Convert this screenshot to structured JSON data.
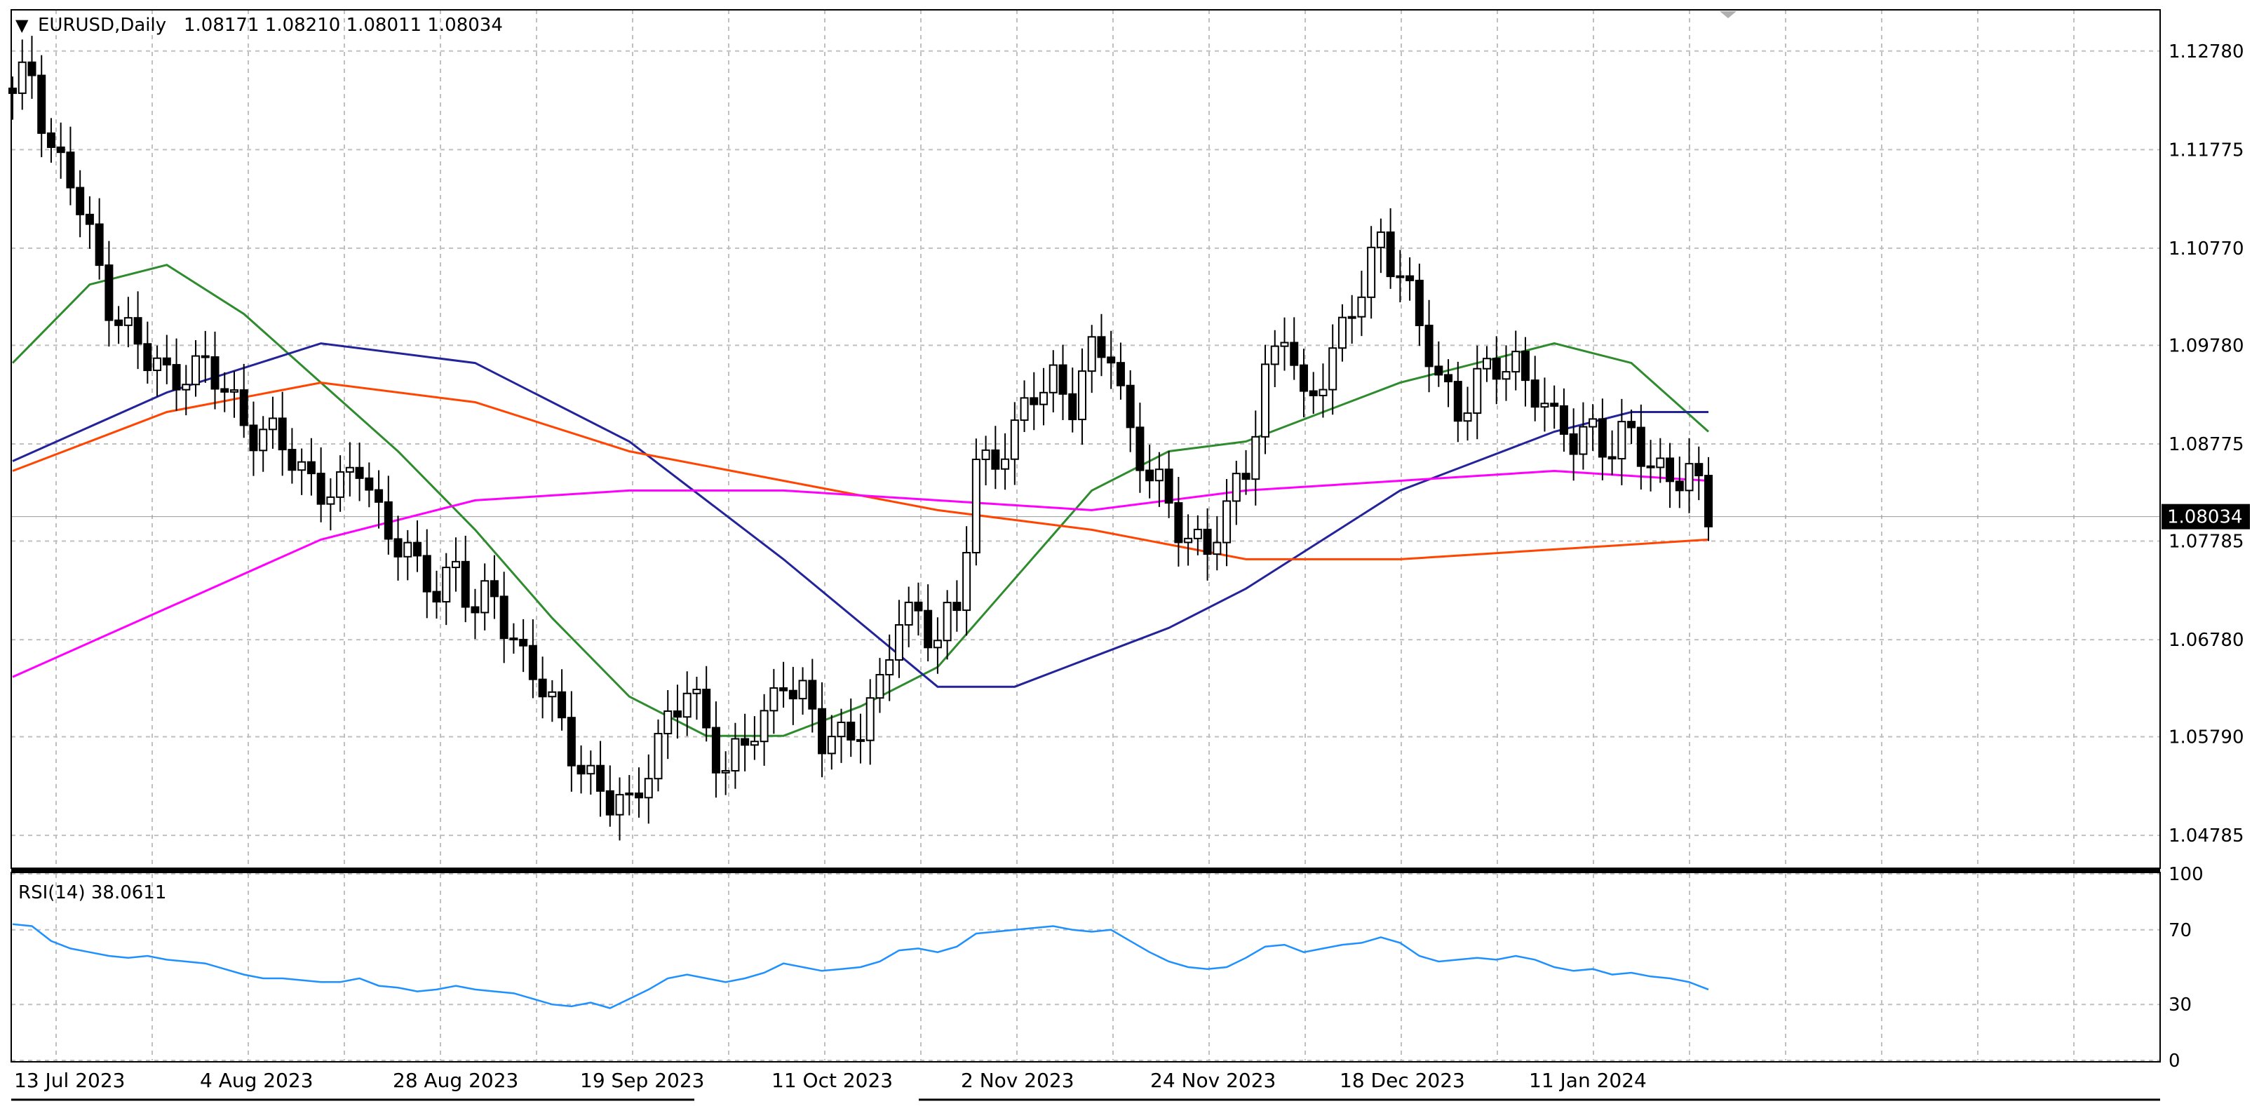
{
  "header": {
    "arrow_glyph": "▼",
    "symbol": "EURUSD,Daily",
    "ohlc": "1.08171 1.08210 1.08011 1.08034"
  },
  "rsi_label": "RSI(14) 38.0611",
  "colors": {
    "background": "#ffffff",
    "grid": "#c0c0c0",
    "candle": "#000000",
    "ma_green": "#2e8b2e",
    "ma_blue": "#23239a",
    "ma_orange": "#ff4500",
    "ma_magenta": "#ff00ff",
    "rsi": "#1e90ff"
  },
  "chart_data": [
    {
      "type": "candlestick",
      "symbol": "EURUSD",
      "timeframe": "Daily",
      "price_ticks": [
        "1.12780",
        "1.11775",
        "1.10770",
        "1.09780",
        "1.08775",
        "1.07785",
        "1.06780",
        "1.05790",
        "1.04785"
      ],
      "current_price_label": "1.08034",
      "ylim": [
        1.0445,
        1.132
      ],
      "date_labels": [
        "13 Jul 2023",
        "4 Aug 2023",
        "28 Aug 2023",
        "19 Sep 2023",
        "11 Oct 2023",
        "2 Nov 2023",
        "24 Nov 2023",
        "18 Dec 2023",
        "11 Jan 2024"
      ],
      "close_path_points": [
        [
          0,
          1.1225
        ],
        [
          2,
          1.126
        ],
        [
          4,
          1.118
        ],
        [
          6,
          1.1145
        ],
        [
          8,
          1.108
        ],
        [
          10,
          1.103
        ],
        [
          12,
          1.099
        ],
        [
          14,
          1.096
        ],
        [
          16,
          1.0945
        ],
        [
          18,
          1.096
        ],
        [
          20,
          1.095
        ],
        [
          22,
          1.093
        ],
        [
          24,
          1.0905
        ],
        [
          26,
          1.089
        ],
        [
          28,
          1.087
        ],
        [
          30,
          1.085
        ],
        [
          32,
          1.084
        ],
        [
          34,
          1.0825
        ],
        [
          36,
          1.0855
        ],
        [
          38,
          1.081
        ],
        [
          40,
          1.078
        ],
        [
          42,
          1.074
        ],
        [
          44,
          1.073
        ],
        [
          46,
          1.076
        ],
        [
          48,
          1.07
        ],
        [
          50,
          1.072
        ],
        [
          52,
          1.068
        ],
        [
          54,
          1.065
        ],
        [
          56,
          1.06
        ],
        [
          58,
          1.057
        ],
        [
          60,
          1.054
        ],
        [
          62,
          1.051
        ],
        [
          64,
          1.05
        ],
        [
          66,
          1.056
        ],
        [
          68,
          1.0595
        ],
        [
          70,
          1.062
        ],
        [
          72,
          1.059
        ],
        [
          74,
          1.055
        ],
        [
          76,
          1.057
        ],
        [
          78,
          1.059
        ],
        [
          80,
          1.065
        ],
        [
          82,
          1.062
        ],
        [
          84,
          1.057
        ],
        [
          86,
          1.058
        ],
        [
          88,
          1.06
        ],
        [
          90,
          1.062
        ],
        [
          92,
          1.07
        ],
        [
          94,
          1.071
        ],
        [
          96,
          1.068
        ],
        [
          98,
          1.07
        ],
        [
          100,
          1.086
        ],
        [
          102,
          1.087
        ],
        [
          104,
          1.088
        ],
        [
          106,
          1.093
        ],
        [
          108,
          1.095
        ],
        [
          110,
          1.092
        ],
        [
          112,
          1.096
        ],
        [
          114,
          1.098
        ],
        [
          116,
          1.089
        ],
        [
          118,
          1.084
        ],
        [
          120,
          1.081
        ],
        [
          122,
          1.079
        ],
        [
          124,
          1.077
        ],
        [
          126,
          1.08
        ],
        [
          128,
          1.086
        ],
        [
          130,
          1.095
        ],
        [
          132,
          1.099
        ],
        [
          134,
          1.091
        ],
        [
          136,
          1.096
        ],
        [
          138,
          1.099
        ],
        [
          140,
          1.103
        ],
        [
          142,
          1.109
        ],
        [
          144,
          1.106
        ],
        [
          146,
          1.099
        ],
        [
          148,
          1.094
        ],
        [
          150,
          1.092
        ],
        [
          152,
          1.094
        ],
        [
          154,
          1.095
        ],
        [
          156,
          1.096
        ],
        [
          158,
          1.094
        ],
        [
          160,
          1.089
        ],
        [
          162,
          1.088
        ],
        [
          164,
          1.09
        ],
        [
          166,
          1.087
        ],
        [
          168,
          1.088
        ],
        [
          170,
          1.086
        ],
        [
          172,
          1.085
        ],
        [
          174,
          1.084
        ],
        [
          176,
          1.0803
        ]
      ]
    },
    {
      "type": "line",
      "title": "RSI(14) 38.0611",
      "ylim": [
        0,
        100
      ],
      "levels": [
        "100",
        "70",
        "30",
        "0"
      ],
      "values": [
        [
          0,
          73
        ],
        [
          2,
          72
        ],
        [
          4,
          64
        ],
        [
          6,
          60
        ],
        [
          8,
          58
        ],
        [
          10,
          56
        ],
        [
          12,
          55
        ],
        [
          14,
          56
        ],
        [
          16,
          54
        ],
        [
          18,
          53
        ],
        [
          20,
          52
        ],
        [
          22,
          49
        ],
        [
          24,
          46
        ],
        [
          26,
          44
        ],
        [
          28,
          44
        ],
        [
          30,
          43
        ],
        [
          32,
          42
        ],
        [
          34,
          42
        ],
        [
          36,
          44
        ],
        [
          38,
          40
        ],
        [
          40,
          39
        ],
        [
          42,
          37
        ],
        [
          44,
          38
        ],
        [
          46,
          40
        ],
        [
          48,
          38
        ],
        [
          50,
          37
        ],
        [
          52,
          36
        ],
        [
          54,
          33
        ],
        [
          56,
          30
        ],
        [
          58,
          29
        ],
        [
          60,
          31
        ],
        [
          62,
          28
        ],
        [
          64,
          33
        ],
        [
          66,
          38
        ],
        [
          68,
          44
        ],
        [
          70,
          46
        ],
        [
          72,
          44
        ],
        [
          74,
          42
        ],
        [
          76,
          44
        ],
        [
          78,
          47
        ],
        [
          80,
          52
        ],
        [
          82,
          50
        ],
        [
          84,
          48
        ],
        [
          86,
          49
        ],
        [
          88,
          50
        ],
        [
          90,
          53
        ],
        [
          92,
          59
        ],
        [
          94,
          60
        ],
        [
          96,
          58
        ],
        [
          98,
          61
        ],
        [
          100,
          68
        ],
        [
          102,
          69
        ],
        [
          104,
          70
        ],
        [
          106,
          71
        ],
        [
          108,
          72
        ],
        [
          110,
          70
        ],
        [
          112,
          69
        ],
        [
          114,
          70
        ],
        [
          116,
          64
        ],
        [
          118,
          58
        ],
        [
          120,
          53
        ],
        [
          122,
          50
        ],
        [
          124,
          49
        ],
        [
          126,
          50
        ],
        [
          128,
          55
        ],
        [
          130,
          61
        ],
        [
          132,
          62
        ],
        [
          134,
          58
        ],
        [
          136,
          60
        ],
        [
          138,
          62
        ],
        [
          140,
          63
        ],
        [
          142,
          66
        ],
        [
          144,
          63
        ],
        [
          146,
          56
        ],
        [
          148,
          53
        ],
        [
          150,
          54
        ],
        [
          152,
          55
        ],
        [
          154,
          54
        ],
        [
          156,
          56
        ],
        [
          158,
          54
        ],
        [
          160,
          50
        ],
        [
          162,
          48
        ],
        [
          164,
          49
        ],
        [
          166,
          46
        ],
        [
          168,
          47
        ],
        [
          170,
          45
        ],
        [
          172,
          44
        ],
        [
          174,
          42
        ],
        [
          176,
          38
        ]
      ]
    }
  ],
  "moving_averages": [
    {
      "name": "green",
      "values": [
        [
          0,
          1.096
        ],
        [
          8,
          1.104
        ],
        [
          16,
          1.106
        ],
        [
          24,
          1.101
        ],
        [
          32,
          1.094
        ],
        [
          40,
          1.087
        ],
        [
          48,
          1.079
        ],
        [
          56,
          1.07
        ],
        [
          64,
          1.062
        ],
        [
          72,
          1.058
        ],
        [
          80,
          1.058
        ],
        [
          88,
          1.061
        ],
        [
          96,
          1.065
        ],
        [
          104,
          1.074
        ],
        [
          112,
          1.083
        ],
        [
          120,
          1.087
        ],
        [
          128,
          1.088
        ],
        [
          136,
          1.091
        ],
        [
          144,
          1.094
        ],
        [
          152,
          1.096
        ],
        [
          160,
          1.098
        ],
        [
          168,
          1.096
        ],
        [
          176,
          1.089
        ]
      ]
    },
    {
      "name": "blue",
      "values": [
        [
          0,
          1.086
        ],
        [
          16,
          1.093
        ],
        [
          32,
          1.098
        ],
        [
          48,
          1.096
        ],
        [
          64,
          1.088
        ],
        [
          80,
          1.076
        ],
        [
          96,
          1.063
        ],
        [
          104,
          1.063
        ],
        [
          112,
          1.066
        ],
        [
          120,
          1.069
        ],
        [
          128,
          1.073
        ],
        [
          136,
          1.078
        ],
        [
          144,
          1.083
        ],
        [
          152,
          1.086
        ],
        [
          160,
          1.089
        ],
        [
          168,
          1.091
        ],
        [
          176,
          1.091
        ]
      ]
    },
    {
      "name": "orange",
      "values": [
        [
          0,
          1.085
        ],
        [
          16,
          1.091
        ],
        [
          32,
          1.094
        ],
        [
          48,
          1.092
        ],
        [
          64,
          1.087
        ],
        [
          80,
          1.084
        ],
        [
          96,
          1.081
        ],
        [
          112,
          1.079
        ],
        [
          128,
          1.076
        ],
        [
          144,
          1.076
        ],
        [
          160,
          1.077
        ],
        [
          176,
          1.078
        ]
      ]
    },
    {
      "name": "magenta",
      "values": [
        [
          0,
          1.064
        ],
        [
          16,
          1.071
        ],
        [
          32,
          1.078
        ],
        [
          48,
          1.082
        ],
        [
          64,
          1.083
        ],
        [
          80,
          1.083
        ],
        [
          96,
          1.082
        ],
        [
          112,
          1.081
        ],
        [
          128,
          1.083
        ],
        [
          144,
          1.084
        ],
        [
          160,
          1.085
        ],
        [
          176,
          1.084
        ]
      ]
    }
  ]
}
